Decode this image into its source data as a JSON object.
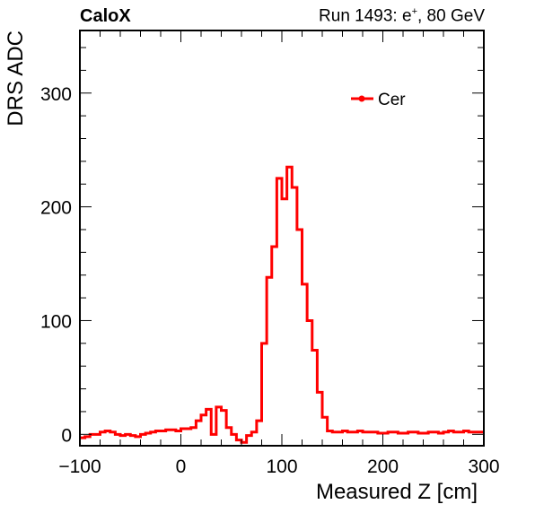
{
  "header": {
    "left_label": "CaloX",
    "run_label": "Run 1493: e",
    "run_charge": "+",
    "run_energy": ", 80 GeV"
  },
  "chart_data": {
    "type": "line",
    "title": "",
    "xlabel": "Measured Z [cm]",
    "ylabel": "DRS ADC",
    "xlim": [
      -100,
      300
    ],
    "ylim": [
      -10,
      355
    ],
    "xticks": [
      -100,
      0,
      100,
      200,
      300
    ],
    "xtick_labels": [
      "−100",
      "0",
      "100",
      "200",
      "300"
    ],
    "yticks": [
      0,
      100,
      200,
      300
    ],
    "ytick_labels": [
      "0",
      "100",
      "200",
      "300"
    ],
    "grid": false,
    "legend": {
      "position": "top-right",
      "entries": [
        "Cer"
      ]
    },
    "series": [
      {
        "name": "Cer",
        "color": "#ff0000",
        "bin_width": 5,
        "x_start": -100,
        "values": [
          -3,
          -2,
          0,
          0,
          2,
          3,
          2,
          0,
          -1,
          0,
          -1,
          -2,
          0,
          1,
          2,
          3,
          3,
          4,
          4,
          3,
          5,
          5,
          6,
          12,
          17,
          22,
          0,
          24,
          21,
          6,
          0,
          -5,
          -7,
          -1,
          2,
          12,
          80,
          138,
          165,
          225,
          207,
          235,
          217,
          180,
          132,
          100,
          74,
          37,
          15,
          3,
          2,
          2,
          3,
          2,
          2,
          3,
          2,
          2,
          2,
          1,
          1,
          2,
          2,
          1,
          1,
          2,
          2,
          1,
          1,
          2,
          2,
          1,
          2,
          3,
          2,
          2,
          3,
          2,
          2,
          2
        ]
      }
    ]
  }
}
